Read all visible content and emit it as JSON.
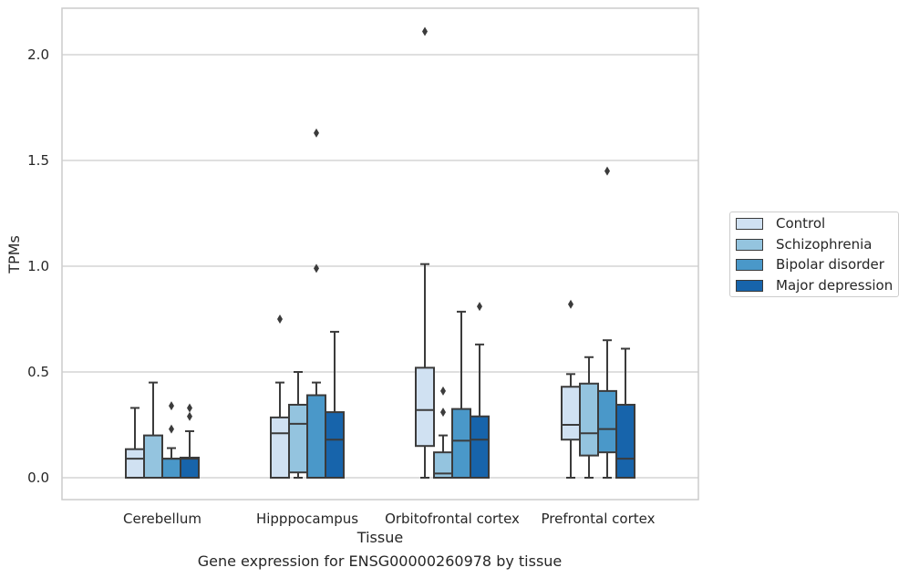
{
  "chart_data": {
    "type": "box",
    "title": "Gene expression for ENSG00000260978 by tissue",
    "xlabel": "Tissue",
    "ylabel": "TPMs",
    "ylim": [
      -0.1,
      2.22
    ],
    "yticks": [
      "0.0",
      "0.5",
      "1.0",
      "1.5",
      "2.0"
    ],
    "grid": "horizontal",
    "legend_position": "right",
    "categories": [
      "Cerebellum",
      "Hipppocampus",
      "Orbitofrontal cortex",
      "Prefrontal cortex"
    ],
    "series": [
      {
        "name": "Control",
        "color": "#d0e1f2",
        "boxes": [
          {
            "whisker_low": 0.0,
            "q1": 0.0,
            "median": 0.09,
            "q3": 0.135,
            "whisker_high": 0.33,
            "outliers": []
          },
          {
            "whisker_low": 0.0,
            "q1": 0.0,
            "median": 0.21,
            "q3": 0.285,
            "whisker_high": 0.45,
            "outliers": [
              0.75
            ]
          },
          {
            "whisker_low": 0.0,
            "q1": 0.15,
            "median": 0.32,
            "q3": 0.52,
            "whisker_high": 1.01,
            "outliers": [
              2.11
            ]
          },
          {
            "whisker_low": 0.0,
            "q1": 0.18,
            "median": 0.25,
            "q3": 0.43,
            "whisker_high": 0.49,
            "outliers": [
              0.82
            ]
          }
        ]
      },
      {
        "name": "Schizophrenia",
        "color": "#94c4df",
        "boxes": [
          {
            "whisker_low": 0.0,
            "q1": 0.0,
            "median": 0.0,
            "q3": 0.2,
            "whisker_high": 0.45,
            "outliers": []
          },
          {
            "whisker_low": 0.0,
            "q1": 0.025,
            "median": 0.255,
            "q3": 0.345,
            "whisker_high": 0.5,
            "outliers": []
          },
          {
            "whisker_low": 0.0,
            "q1": 0.0,
            "median": 0.02,
            "q3": 0.12,
            "whisker_high": 0.2,
            "outliers": [
              0.31,
              0.41
            ]
          },
          {
            "whisker_low": 0.0,
            "q1": 0.105,
            "median": 0.21,
            "q3": 0.445,
            "whisker_high": 0.57,
            "outliers": []
          }
        ]
      },
      {
        "name": "Bipolar disorder",
        "color": "#4a98c9",
        "boxes": [
          {
            "whisker_low": 0.0,
            "q1": 0.0,
            "median": 0.09,
            "q3": 0.09,
            "whisker_high": 0.14,
            "outliers": [
              0.23,
              0.34
            ]
          },
          {
            "whisker_low": 0.0,
            "q1": 0.0,
            "median": 0.39,
            "q3": 0.39,
            "whisker_high": 0.45,
            "outliers": [
              0.99,
              1.63
            ]
          },
          {
            "whisker_low": 0.0,
            "q1": 0.0,
            "median": 0.175,
            "q3": 0.325,
            "whisker_high": 0.785,
            "outliers": []
          },
          {
            "whisker_low": 0.0,
            "q1": 0.12,
            "median": 0.23,
            "q3": 0.41,
            "whisker_high": 0.65,
            "outliers": [
              1.45
            ]
          }
        ]
      },
      {
        "name": "Major depression",
        "color": "#1764ab",
        "boxes": [
          {
            "whisker_low": 0.0,
            "q1": 0.0,
            "median": 0.09,
            "q3": 0.095,
            "whisker_high": 0.22,
            "outliers": [
              0.29,
              0.33
            ]
          },
          {
            "whisker_low": 0.0,
            "q1": 0.0,
            "median": 0.18,
            "q3": 0.31,
            "whisker_high": 0.69,
            "outliers": []
          },
          {
            "whisker_low": 0.0,
            "q1": 0.0,
            "median": 0.18,
            "q3": 0.29,
            "whisker_high": 0.63,
            "outliers": [
              0.81
            ]
          },
          {
            "whisker_low": 0.0,
            "q1": 0.0,
            "median": 0.09,
            "q3": 0.345,
            "whisker_high": 0.61,
            "outliers": []
          }
        ]
      }
    ]
  }
}
